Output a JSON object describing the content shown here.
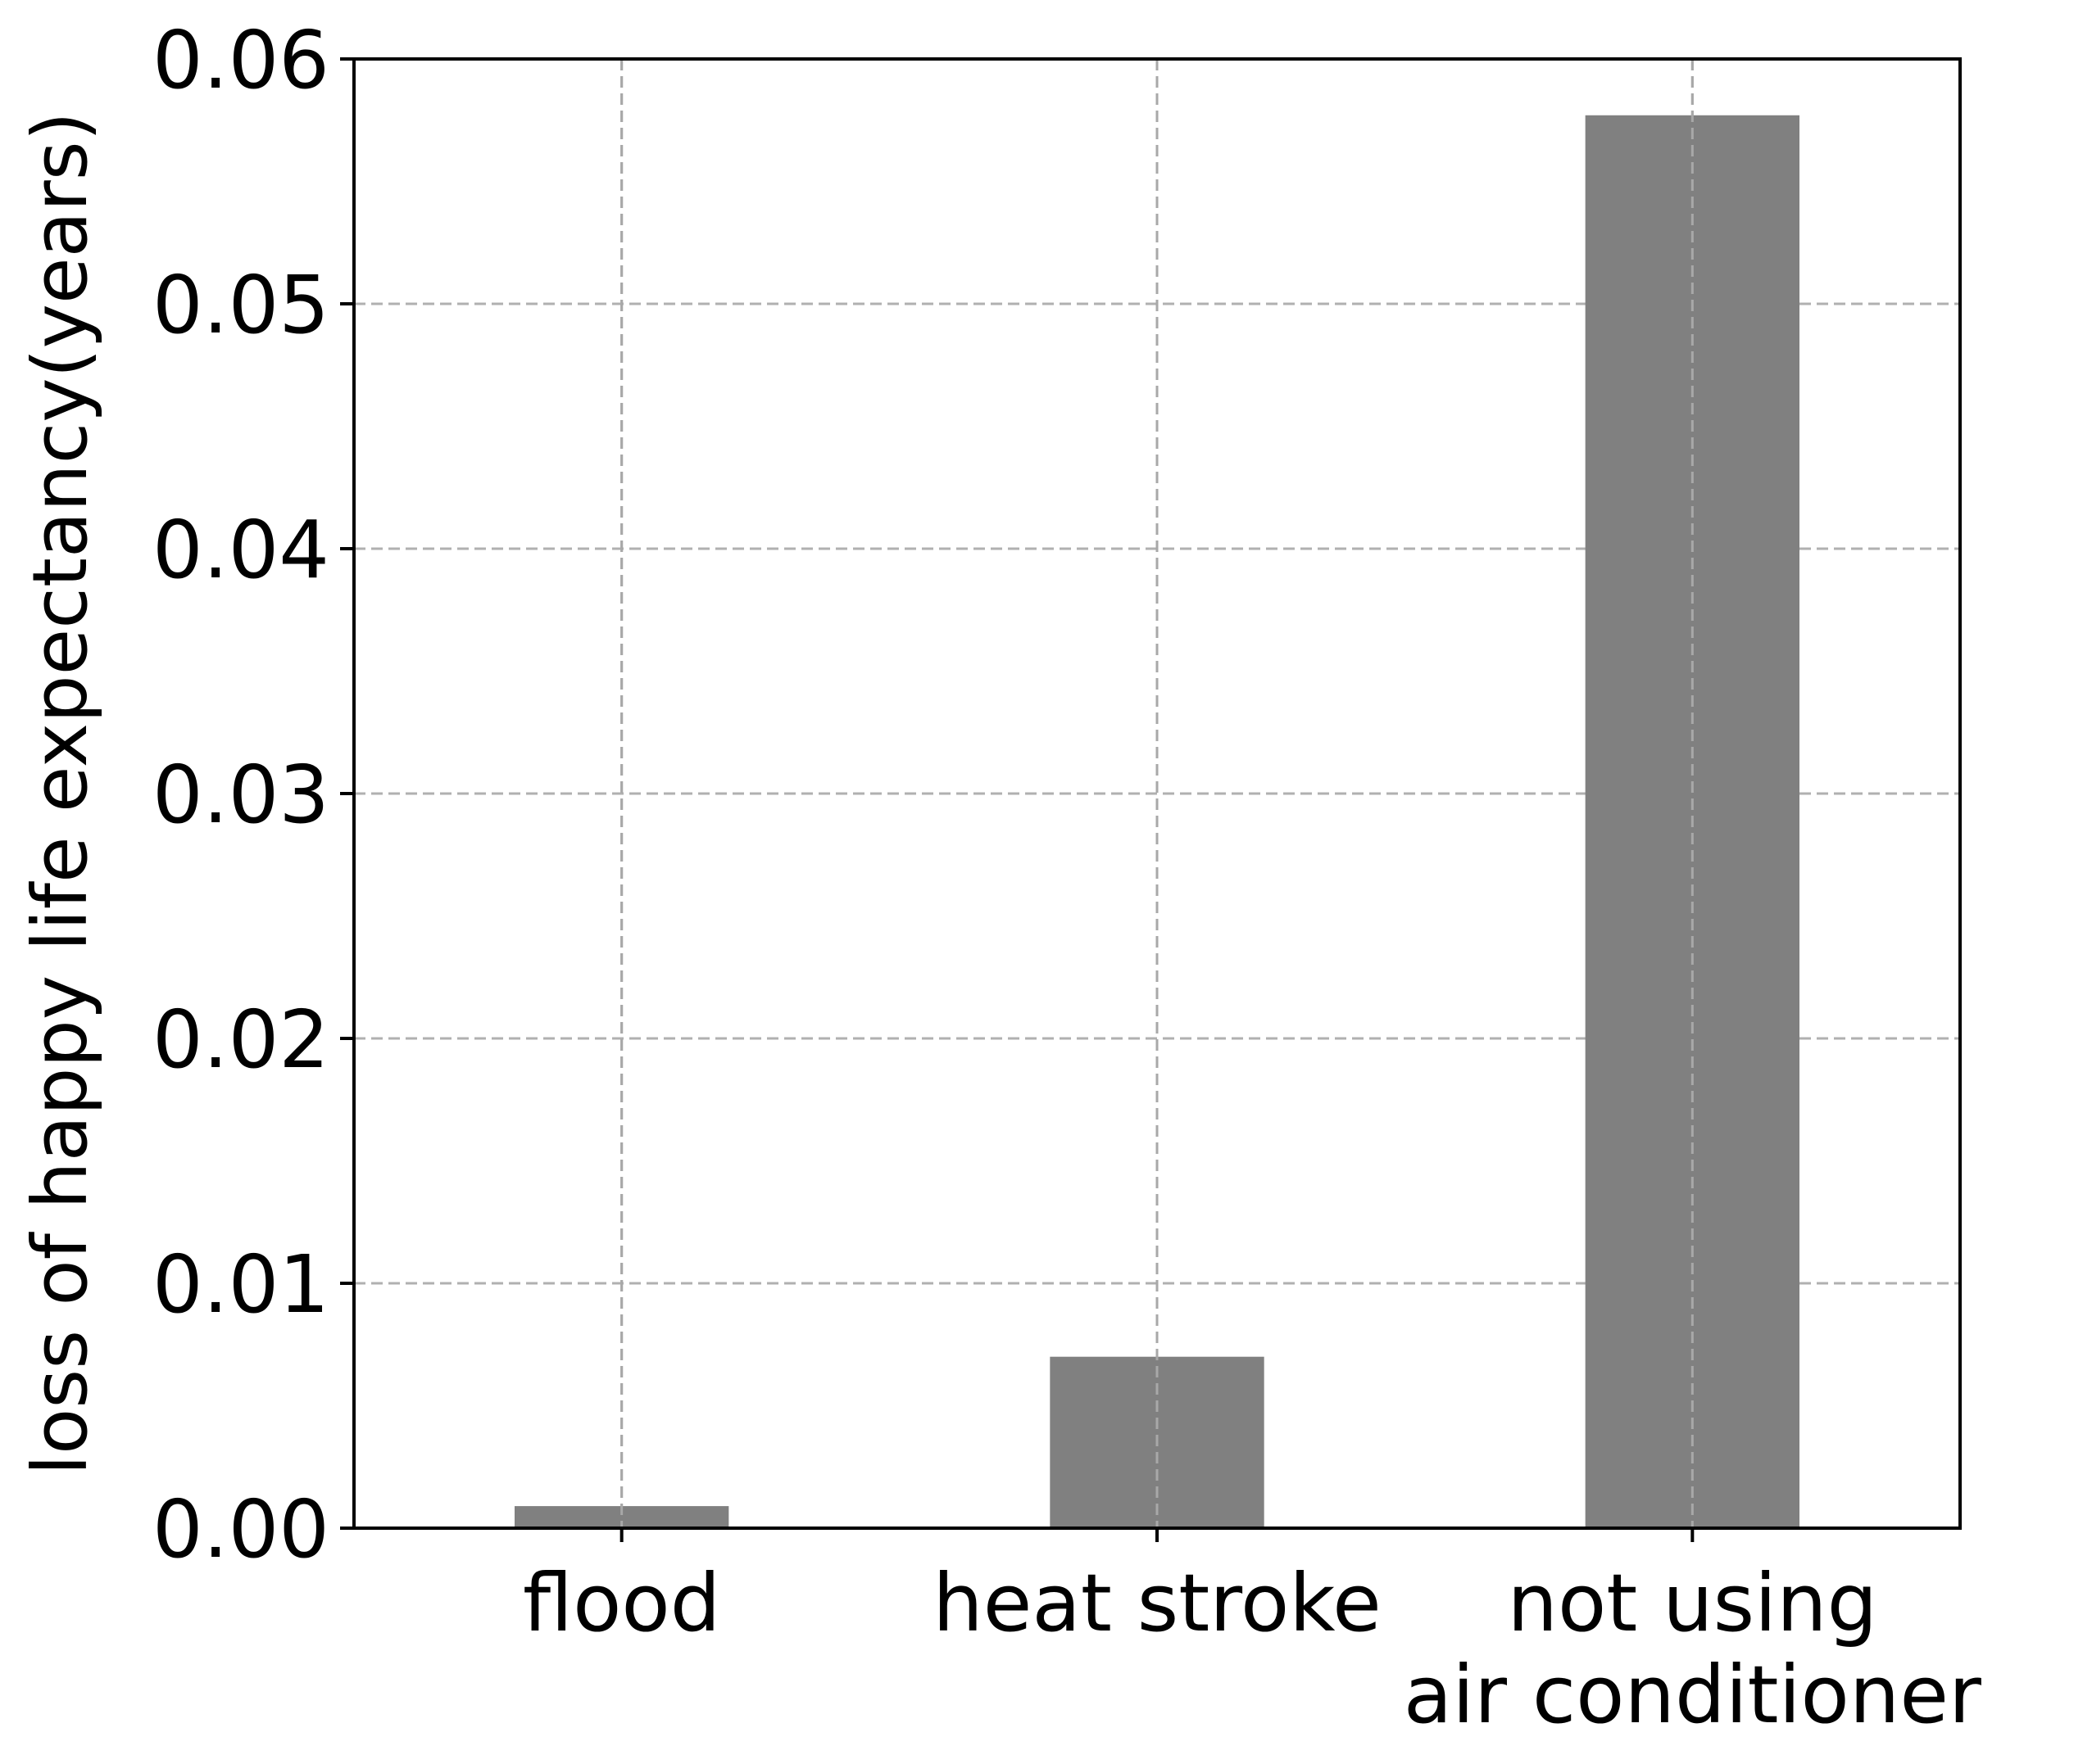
{
  "chart_data": {
    "type": "bar",
    "title": "",
    "xlabel": "",
    "ylabel": "loss of happy life expectancy(years)",
    "categories": [
      [
        "flood"
      ],
      [
        "heat stroke"
      ],
      [
        "not using",
        "air conditioner"
      ]
    ],
    "values": [
      0.0009,
      0.007,
      0.0577
    ],
    "ylim": [
      0,
      0.06
    ],
    "yticks": [
      0.0,
      0.01,
      0.02,
      0.03,
      0.04,
      0.05,
      0.06
    ],
    "ytick_labels": [
      "0.00",
      "0.01",
      "0.02",
      "0.03",
      "0.04",
      "0.05",
      "0.06"
    ],
    "grid": true,
    "bar_color": "#808080"
  }
}
